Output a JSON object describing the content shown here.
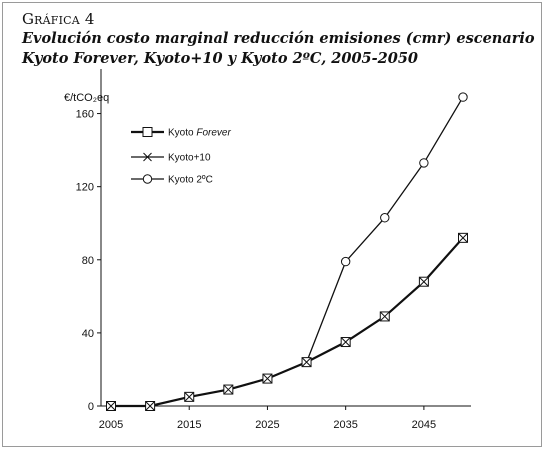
{
  "figure": {
    "label": "Gráfica 4",
    "title_line1": "Evolución costo marginal reducción emisiones (cmr) escenario",
    "title_line2": "Kyoto Forever, Kyoto+10 y Kyoto 2ºC, 2005-2050"
  },
  "chart_data": {
    "type": "line",
    "ylabel": "€/tCO₂eq",
    "xlabel": "",
    "xlim": [
      2005,
      2050
    ],
    "ylim": [
      0,
      180
    ],
    "x_ticks": [
      2005,
      2015,
      2025,
      2035,
      2045
    ],
    "y_ticks": [
      0,
      40,
      80,
      120,
      160
    ],
    "grid": false,
    "legend_position": "top-left",
    "series": [
      {
        "name": "Kyoto Forever",
        "legend_prefix": "Kyoto ",
        "legend_suffix": "Forever",
        "marker": "square",
        "x": [
          2005,
          2010,
          2015,
          2020,
          2025,
          2030,
          2035,
          2040,
          2045,
          2050
        ],
        "values": [
          0,
          0,
          5,
          9,
          15,
          24,
          35,
          49,
          68,
          92
        ]
      },
      {
        "name": "Kyoto+10",
        "legend_prefix": "Kyoto+10",
        "legend_suffix": "",
        "marker": "x",
        "x": [
          2005,
          2010,
          2015,
          2020,
          2025,
          2030,
          2035,
          2040,
          2045,
          2050
        ],
        "values": [
          0,
          0,
          5,
          9,
          15,
          24,
          35,
          49,
          68,
          92
        ]
      },
      {
        "name": "Kyoto 2ºC",
        "legend_prefix": "Kyoto 2ºC",
        "legend_suffix": "",
        "marker": "circle",
        "x": [
          2005,
          2010,
          2015,
          2020,
          2025,
          2030,
          2035,
          2040,
          2045,
          2050
        ],
        "values": [
          0,
          0,
          5,
          9,
          15,
          24,
          79,
          103,
          133,
          169
        ]
      }
    ]
  }
}
